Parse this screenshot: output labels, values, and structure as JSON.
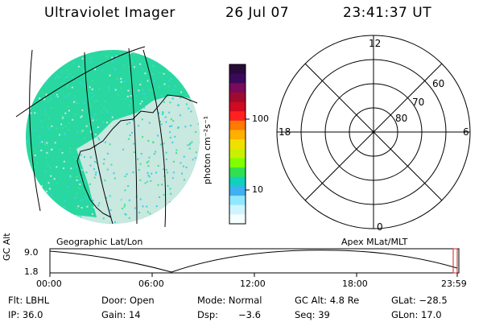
{
  "header": {
    "title": "Ultraviolet Imager",
    "date": "26 Jul 07",
    "time": "23:41:37 UT"
  },
  "colorbar": {
    "unit_label": "photon cm⁻²s⁻¹",
    "ticks": [
      "100",
      "10"
    ],
    "colors": [
      "#2a0a3a",
      "#3a0a5a",
      "#7a0a5a",
      "#a00a30",
      "#d00a20",
      "#ff2020",
      "#ff7a00",
      "#ffb000",
      "#f0e000",
      "#c8f000",
      "#80ff00",
      "#30e050",
      "#10d0c0",
      "#40b0f0",
      "#90e8ff",
      "#d0f4ff",
      "#f4ffff"
    ]
  },
  "polar_plot": {
    "mlt_labels": [
      "12",
      "18",
      "6",
      "0"
    ],
    "lat_labels": [
      "60",
      "70",
      "80"
    ]
  },
  "left_map": {
    "label": "Geographic Lat/Lon",
    "colors": {
      "main": "#28d8a0",
      "light": "#c8e8e0",
      "cyan": "#3ad0e8"
    }
  },
  "right_map": {
    "label": "Apex MLat/MLT"
  },
  "timeline": {
    "ylabel": "GC Alt",
    "y_ticks": [
      "9.0",
      "1.8"
    ],
    "x_ticks": [
      "00:00",
      "06:00",
      "12:00",
      "18:00",
      "23:59"
    ],
    "marker_color": "#d02020"
  },
  "status": {
    "filter": "Flt: LBHL",
    "door": "Door: Open",
    "mode": "Mode: Normal",
    "gc_alt": "GC Alt: 4.8 Re",
    "glat": "GLat: −28.5",
    "ip": "IP: 36.0",
    "gain": "Gain: 14",
    "dsp_label": "Dsp:",
    "dsp_value": "−3.6",
    "seq": "Seq: 39",
    "glon": "GLon:  17.0"
  }
}
